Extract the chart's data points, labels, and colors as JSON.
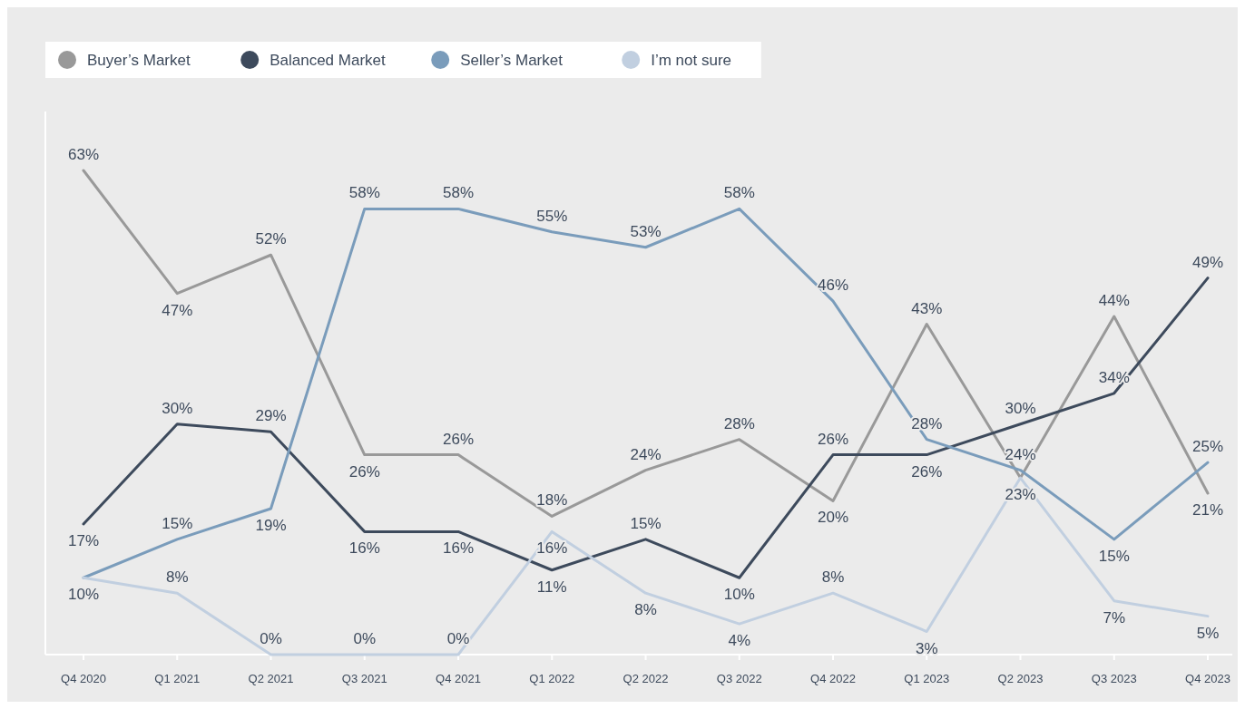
{
  "chart_data": {
    "type": "line",
    "categories": [
      "Q4 2020",
      "Q1 2021",
      "Q2 2021",
      "Q3 2021",
      "Q4 2021",
      "Q1 2022",
      "Q2 2022",
      "Q3 2022",
      "Q4 2022",
      "Q1 2023",
      "Q2 2023",
      "Q3 2023",
      "Q4 2023"
    ],
    "series": [
      {
        "name": "Buyer’s Market",
        "color": "#999999",
        "values": [
          63,
          47,
          52,
          26,
          26,
          18,
          24,
          28,
          20,
          43,
          23,
          44,
          21
        ],
        "value_labels": [
          "63%",
          "47%",
          "52%",
          "26%",
          "26%",
          "18%",
          "24%",
          "28%",
          "20%",
          "43%",
          "23%",
          "44%",
          "21%"
        ]
      },
      {
        "name": "Balanced Market",
        "color": "#3d4a5c",
        "values": [
          17,
          30,
          29,
          16,
          16,
          11,
          15,
          10,
          26,
          26,
          30,
          34,
          49
        ],
        "value_labels": [
          "17%",
          "30%",
          "29%",
          "16%",
          "16%",
          "11%",
          "15%",
          "10%",
          "26%",
          "26%",
          "30%",
          "34%",
          "49%"
        ]
      },
      {
        "name": "Seller’s Market",
        "color": "#7a9cbb",
        "values": [
          10,
          15,
          19,
          58,
          58,
          55,
          53,
          58,
          46,
          28,
          24,
          15,
          25
        ],
        "value_labels": [
          "10%",
          "15%",
          "19%",
          "58%",
          "58%",
          "55%",
          "53%",
          "58%",
          "46%",
          "28%",
          "24%",
          "15%",
          "25%"
        ]
      },
      {
        "name": "I’m not sure",
        "color": "#c1cfe0",
        "values": [
          10,
          8,
          0,
          0,
          0,
          16,
          8,
          4,
          8,
          3,
          23,
          7,
          5
        ],
        "value_labels": [
          null,
          "8%",
          "0%",
          "0%",
          "0%",
          "16%",
          "8%",
          "4%",
          "8%",
          "3%",
          null,
          "7%",
          "5%"
        ]
      }
    ],
    "legend": "top left",
    "marker": "none",
    "line_style": "solid",
    "grid": false
  }
}
